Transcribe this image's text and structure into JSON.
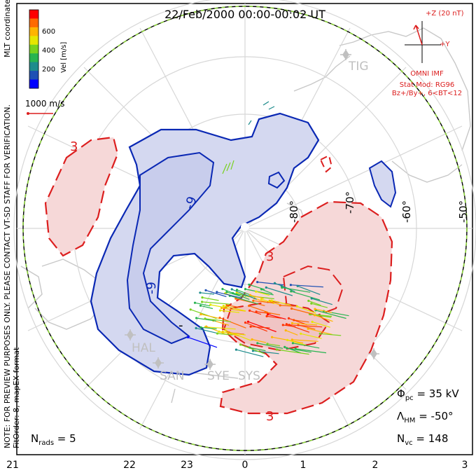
{
  "header": {
    "title": "22/Feb/2000 00:00-00:02 UT"
  },
  "colorbar": {
    "labels": [
      "600",
      "400",
      "200"
    ],
    "axis_label": "Vel [m/s]",
    "colors": [
      "#ff0000",
      "#ff6a00",
      "#ffb400",
      "#e6e600",
      "#78d21e",
      "#28b450",
      "#1e8c8c",
      "#1e50b4",
      "#0000ff"
    ]
  },
  "scale_vector": {
    "label": "1000 m/s"
  },
  "imf": {
    "z_label": "+Z (20 nT)",
    "y_label": "+Y",
    "source": "OMNI IMF",
    "model": "Stat Mod: RG96",
    "condition": "Bz+/By+, 6<BT<12"
  },
  "side_notes": {
    "mlt": "MLT coordinates",
    "preview": "NOTE: FOR PREVIEW PURPOSES ONLY. PLEASE CONTACT VT-SD STAFF FOR VERIFICATION.",
    "fit": "FitOrder: 8, mapEX format"
  },
  "stations": [
    "TIG",
    "HAL",
    "SAN",
    "SYE",
    "SYS"
  ],
  "latitude_labels": [
    "-80°",
    "-70°",
    "-60°",
    "-50°"
  ],
  "contours": {
    "negative": [
      "-9",
      "-9",
      "-"
    ],
    "positive": [
      "3",
      "3",
      "3"
    ]
  },
  "stats": {
    "phi_pc": "35 kV",
    "lambda_hm": "-50°",
    "n_vc": "148",
    "n_rads": "5"
  },
  "stat_labels": {
    "phi": "Φ",
    "phi_sub": "pc",
    "lambda": "Λ",
    "lambda_sub": "HM",
    "nvc": "N",
    "nvc_sub": "vc",
    "nrads": "N",
    "nrads_sub": "rads"
  },
  "mlt_axis": [
    "21",
    "22",
    "23",
    "0",
    "1",
    "2",
    "3"
  ],
  "colors": {
    "negative": "#0a28b4",
    "negative_fill": "#d4d8f0",
    "positive": "#dc1e1e",
    "positive_fill": "#f6d8d8",
    "boundary": "#8cd23c"
  }
}
